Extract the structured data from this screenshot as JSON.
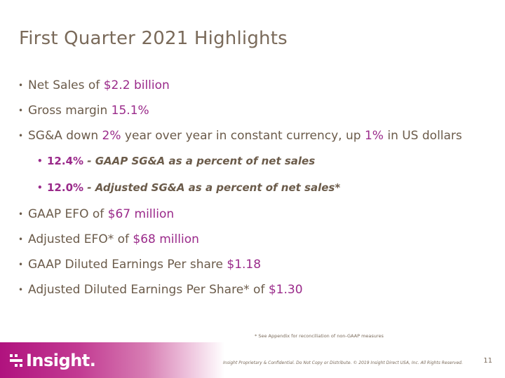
{
  "slide": {
    "title": "First Quarter 2021 Highlights",
    "colors": {
      "accent": "#9a2a8a",
      "text": "#6b5b4a",
      "brand": "#b0127e"
    },
    "bullets": [
      {
        "pre": "Net Sales of ",
        "hl": "$2.2 billion",
        "post": ""
      },
      {
        "pre": "Gross margin ",
        "hl": "15.1%",
        "post": ""
      },
      {
        "pre": "SG&A down ",
        "hl": "2%",
        "mid": " year over year in constant currency, up ",
        "hl2": "1%",
        "post": " in US dollars"
      },
      {
        "pre": "GAAP EFO of ",
        "hl": "$67 million",
        "post": ""
      },
      {
        "pre": "Adjusted EFO* of ",
        "hl": "$68 million",
        "post": ""
      },
      {
        "pre": "GAAP Diluted Earnings Per share ",
        "hl": "$1.18",
        "post": ""
      },
      {
        "pre": "Adjusted Diluted Earnings Per Share* of ",
        "hl": "$1.30",
        "post": ""
      }
    ],
    "sub_bullets": [
      {
        "hl": "12.4%",
        "text": " - GAAP SG&A as a percent of net sales"
      },
      {
        "hl": "12.0%",
        "text": " - Adjusted SG&A as a percent of net sales*"
      }
    ],
    "footnote": "* See Appendix for reconciliation of non-GAAP measures",
    "logo_text": "Insight.",
    "logo_icon": "insight-logo-icon",
    "legal": "Insight Proprietary & Confidential. Do Not Copy or Distribute. © 2019 Insight Direct USA, Inc. All Rights Reserved.",
    "page_number": "11"
  }
}
